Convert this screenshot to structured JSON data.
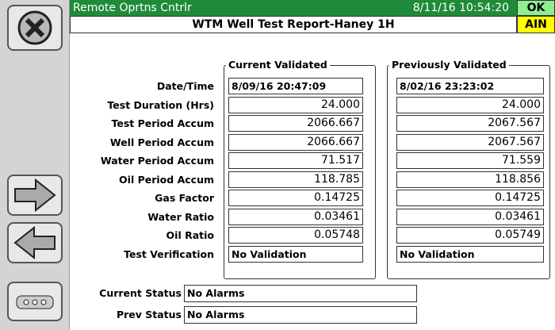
{
  "header": {
    "title": "Remote Oprtns Cntrlr",
    "datetime": "8/11/16 10:54:20",
    "ok": "OK",
    "subtitle": "WTM Well Test Report-Haney 1H",
    "ain": "AIN"
  },
  "groups": [
    "Current Validated",
    "Previously Validated"
  ],
  "rows": [
    {
      "label": "Date/Time",
      "current": "8/09/16 20:47:09",
      "previous": "8/02/16 23:23:02"
    },
    {
      "label": "Test Duration (Hrs)",
      "current": "24.000",
      "previous": "24.000"
    },
    {
      "label": "Test Period Accum",
      "current": "2066.667",
      "previous": "2067.567"
    },
    {
      "label": "Well Period Accum",
      "current": "2066.667",
      "previous": "2067.567"
    },
    {
      "label": "Water Period Accum",
      "current": "71.517",
      "previous": "71.559"
    },
    {
      "label": "Oil Period Accum",
      "current": "118.785",
      "previous": "118.856"
    },
    {
      "label": "Gas Factor",
      "current": "0.14725",
      "previous": "0.14725"
    },
    {
      "label": "Water Ratio",
      "current": "0.03461",
      "previous": "0.03461"
    },
    {
      "label": "Oil Ratio",
      "current": "0.05748",
      "previous": "0.05749"
    },
    {
      "label": "Test Verification",
      "current": "No Validation",
      "previous": "No Validation"
    }
  ],
  "status": [
    {
      "label": "Current Status",
      "value": "No Alarms"
    },
    {
      "label": "Prev Status",
      "value": "No Alarms"
    }
  ]
}
